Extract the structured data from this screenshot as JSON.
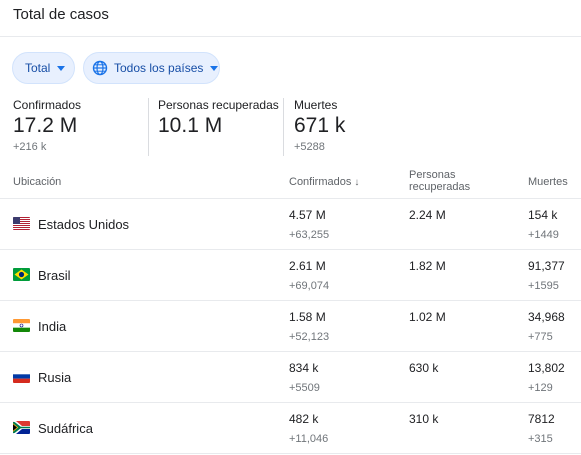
{
  "header": {
    "title": "Total de casos"
  },
  "filters": {
    "scope": {
      "label": "Total",
      "icon": "chevron-down-icon"
    },
    "region": {
      "label": "Todos los países",
      "icon": "globe-icon"
    }
  },
  "summary": {
    "confirmed": {
      "label": "Confirmados",
      "value": "17.2 M",
      "delta": "+216 k"
    },
    "recovered": {
      "label": "Personas recuperadas",
      "value": "10.1 M",
      "delta": ""
    },
    "deaths": {
      "label": "Muertes",
      "value": "671 k",
      "delta": "+5288"
    }
  },
  "table": {
    "headers": {
      "location": "Ubicación",
      "confirmed": "Confirmados",
      "recovered_line1": "Personas",
      "recovered_line2": "recuperadas",
      "deaths": "Muertes"
    },
    "rows": [
      {
        "flag": "us-flag-icon",
        "country": "Estados Unidos",
        "confirmed": "4.57 M",
        "confirmed_delta": "+63,255",
        "recovered": "2.24 M",
        "deaths": "154 k",
        "deaths_delta": "+1449"
      },
      {
        "flag": "brazil-flag-icon",
        "country": "Brasil",
        "confirmed": "2.61 M",
        "confirmed_delta": "+69,074",
        "recovered": "1.82 M",
        "deaths": "91,377",
        "deaths_delta": "+1595"
      },
      {
        "flag": "india-flag-icon",
        "country": "India",
        "confirmed": "1.58 M",
        "confirmed_delta": "+52,123",
        "recovered": "1.02 M",
        "deaths": "34,968",
        "deaths_delta": "+775"
      },
      {
        "flag": "russia-flag-icon",
        "country": "Rusia",
        "confirmed": "834 k",
        "confirmed_delta": "+5509",
        "recovered": "630 k",
        "deaths": "13,802",
        "deaths_delta": "+129"
      },
      {
        "flag": "south-africa-flag-icon",
        "country": "Sudáfrica",
        "confirmed": "482 k",
        "confirmed_delta": "+11,046",
        "recovered": "310 k",
        "deaths": "7812",
        "deaths_delta": "+315"
      }
    ]
  },
  "colors": {
    "accent": "#1a73e8",
    "chip_bg": "#e8f0fe",
    "muted": "#70757a",
    "divider": "#e8eaed"
  }
}
